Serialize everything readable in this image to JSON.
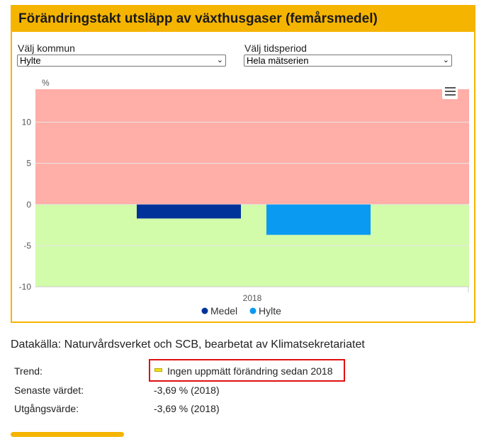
{
  "panel": {
    "title": "Förändringstakt utsläpp av växthusgaser (femårsmedel)"
  },
  "selectors": {
    "kommun": {
      "label": "Välj kommun",
      "value": "Hylte"
    },
    "period": {
      "label": "Välj tidsperiod",
      "value": "Hela mätserien"
    }
  },
  "chart_data": {
    "type": "bar",
    "ylabel": "%",
    "categories": [
      "2018"
    ],
    "ylim": [
      -10,
      14
    ],
    "yticks": [
      10,
      5,
      0,
      -5,
      -10
    ],
    "bands": [
      {
        "from": 0,
        "to": 14,
        "color": "#ffaea8"
      },
      {
        "from": -10,
        "to": 0,
        "color": "#d2fbaa"
      }
    ],
    "series": [
      {
        "name": "Medel",
        "values": [
          -1.7
        ],
        "color": "#00339a"
      },
      {
        "name": "Hylte",
        "values": [
          -3.69
        ],
        "color": "#0b9af2"
      }
    ],
    "legend_position": "bottom-center",
    "grid": true
  },
  "menu": {
    "icon": "hamburger-menu-icon"
  },
  "source": {
    "text": "Datakälla: Naturvårdsverket och SCB, bearbetat av Klimatsekretariatet"
  },
  "info": {
    "trend_label": "Trend:",
    "trend_value": "Ingen uppmätt förändring sedan 2018",
    "latest_label": "Senaste värdet:",
    "latest_value": "-3,69 % (2018)",
    "baseline_label": "Utgångsvärde:",
    "baseline_value": "-3,69 % (2018)"
  },
  "colors": {
    "accent": "#f5b400",
    "highlight": "#e01010",
    "trend_icon": "#f2e21a"
  }
}
